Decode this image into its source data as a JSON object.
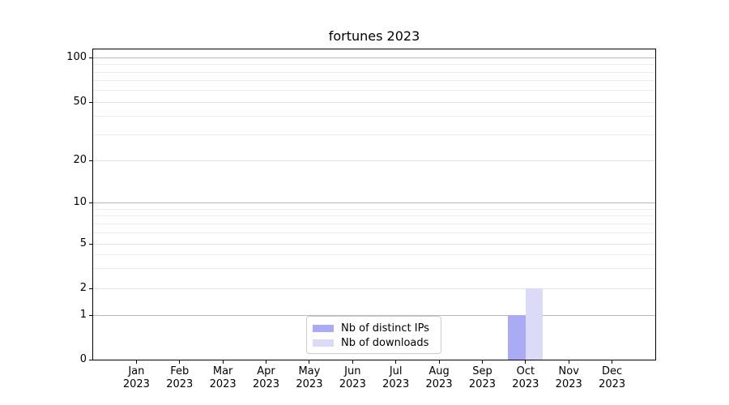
{
  "chart_data": {
    "type": "bar",
    "title": "fortunes 2023",
    "categories": [
      "Jan 2023",
      "Feb 2023",
      "Mar 2023",
      "Apr 2023",
      "May 2023",
      "Jun 2023",
      "Jul 2023",
      "Aug 2023",
      "Sep 2023",
      "Oct 2023",
      "Nov 2023",
      "Dec 2023"
    ],
    "x_tick_months": [
      "Jan",
      "Feb",
      "Mar",
      "Apr",
      "May",
      "Jun",
      "Jul",
      "Aug",
      "Sep",
      "Oct",
      "Nov",
      "Dec"
    ],
    "x_tick_year": "2023",
    "series": [
      {
        "name": "Nb of distinct IPs",
        "color": "#aaaaf5",
        "values": [
          0,
          0,
          0,
          0,
          0,
          0,
          0,
          0,
          0,
          1,
          0,
          0
        ]
      },
      {
        "name": "Nb of downloads",
        "color": "#dbdbf8",
        "values": [
          0,
          0,
          0,
          0,
          0,
          0,
          0,
          0,
          0,
          2,
          0,
          0
        ]
      }
    ],
    "y_axis": {
      "scale": "symlog",
      "ticks": [
        0,
        1,
        2,
        5,
        10,
        20,
        50,
        100
      ],
      "major_grid_values": [
        1,
        10,
        100
      ],
      "labeled_grid_values": [
        2,
        5,
        20,
        50
      ],
      "minor_grid_values": [
        3,
        4,
        6,
        7,
        8,
        9,
        30,
        40,
        60,
        70,
        80,
        90
      ]
    },
    "legend": {
      "location": "lower center",
      "entries": [
        "Nb of distinct IPs",
        "Nb of downloads"
      ]
    },
    "grid": true,
    "colors": {
      "background": "#ffffff",
      "spine": "#000000",
      "major_grid": "#b8b8b8",
      "labeled_grid": "#e2e2e2",
      "minor_grid": "#ececec",
      "legend_border": "#cccccc",
      "text": "#000000"
    }
  }
}
